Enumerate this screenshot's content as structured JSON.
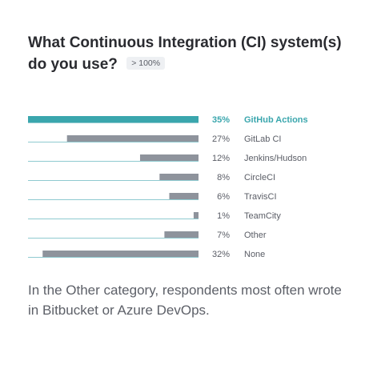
{
  "question": {
    "title": "What Continuous Integration (CI) system(s) do you use?",
    "badge": "> 100%"
  },
  "chart_data": {
    "type": "bar",
    "orientation": "horizontal",
    "categories": [
      "GitHub Actions",
      "GitLab CI",
      "Jenkins/Hudson",
      "CircleCI",
      "TravisCI",
      "TeamCity",
      "Other",
      "None"
    ],
    "values": [
      35,
      27,
      12,
      8,
      6,
      1,
      7,
      32
    ],
    "value_labels": [
      "35%",
      "27%",
      "12%",
      "8%",
      "6%",
      "1%",
      "7%",
      "32%"
    ],
    "highlight_index": 0,
    "grid": false,
    "colors": {
      "highlight": "#3aa6ad",
      "bar": "#8e939c",
      "baseline": "#8fcad0",
      "highlight_text": "#3aa6ad",
      "text": "#5a5d66"
    }
  },
  "caption": "In the Other category, respondents most often wrote in Bitbucket or Azure DevOps."
}
